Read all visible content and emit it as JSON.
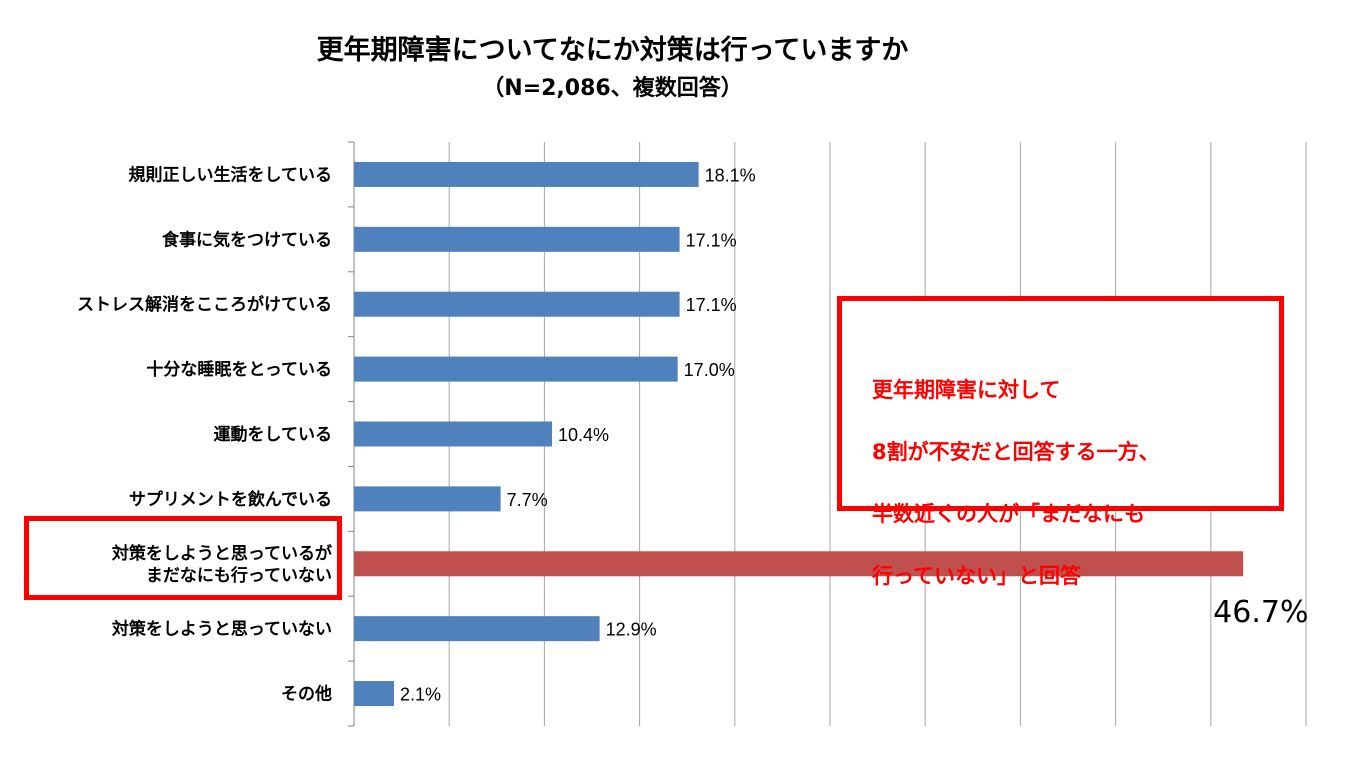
{
  "title": "更年期障害についてなにか対策は行っていますか",
  "subtitle": "（N=2,086、複数回答）",
  "chart_data": {
    "type": "bar",
    "orientation": "horizontal",
    "title": "更年期障害についてなにか対策は行っていますか",
    "subtitle": "（N=2,086、複数回答）",
    "categories": [
      [
        "規則正しい生活をしている"
      ],
      [
        "食事に気をつけている"
      ],
      [
        "ストレス解消をこころがけている"
      ],
      [
        "十分な睡眠をとっている"
      ],
      [
        "運動をしている"
      ],
      [
        "サプリメントを飲んでいる"
      ],
      [
        "対策をしようと思っているが",
        "まだなにも行っていない"
      ],
      [
        "対策をしようと思っていない"
      ],
      [
        "その他"
      ]
    ],
    "values": [
      18.1,
      17.1,
      17.1,
      17.0,
      10.4,
      7.7,
      46.7,
      12.9,
      2.1
    ],
    "value_labels": [
      "18.1%",
      "17.1%",
      "17.1%",
      "17.0%",
      "10.4%",
      "7.7%",
      "46.7%",
      "12.9%",
      "2.1%"
    ],
    "xlim": [
      0,
      50
    ],
    "grid_step": 5,
    "grid": true,
    "bar_color": "#4f81bd",
    "highlight_color": "#c0504d",
    "highlight_index": 6
  },
  "callout": {
    "lines": [
      "更年期障害に対して",
      "8割が不安だと回答する一方、",
      "半数近くの人が「まだなにも",
      "行っていない」と回答"
    ],
    "color": "#ff0000"
  }
}
